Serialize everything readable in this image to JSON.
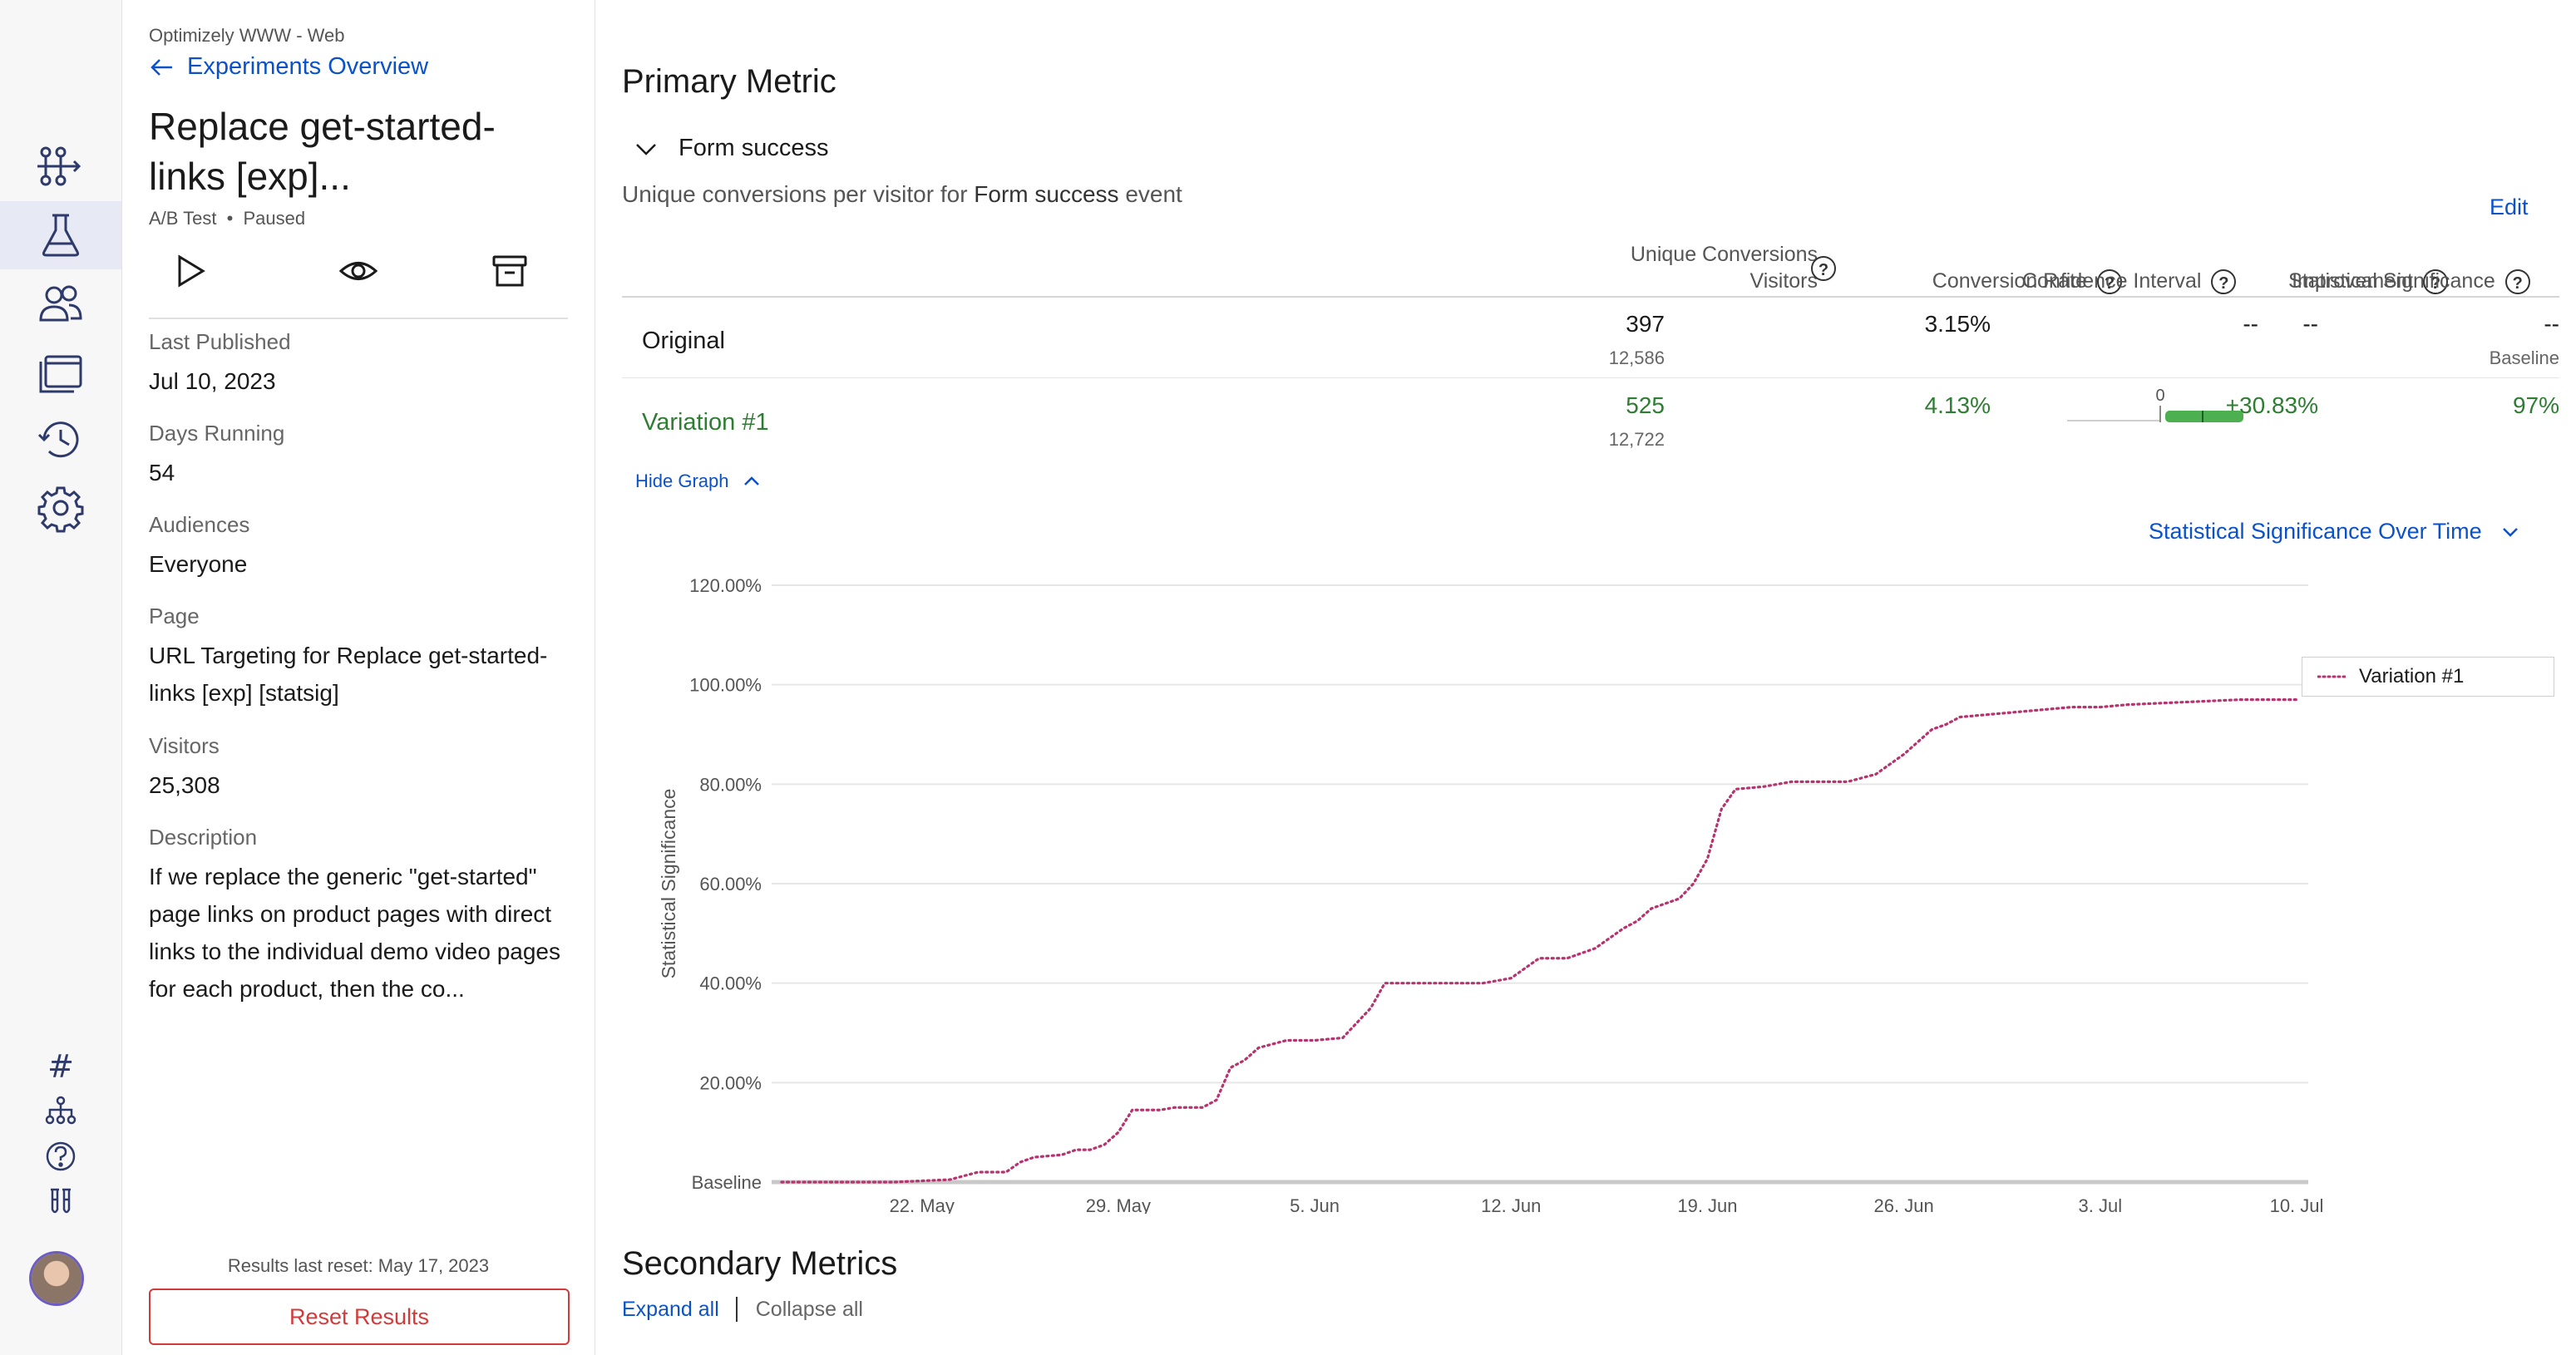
{
  "rail": {
    "items": [
      {
        "name": "flows-icon"
      },
      {
        "name": "flask-icon",
        "active": true
      },
      {
        "name": "users-icon"
      },
      {
        "name": "windows-icon"
      },
      {
        "name": "history-icon"
      },
      {
        "name": "gear-icon"
      }
    ],
    "bottom_items": [
      {
        "name": "hash-icon",
        "glyph": "#"
      },
      {
        "name": "hierarchy-icon"
      },
      {
        "name": "help-icon"
      },
      {
        "name": "test-tubes-icon"
      }
    ]
  },
  "sidebar": {
    "project": "Optimizely WWW - Web",
    "back_link": "Experiments Overview",
    "title": "Replace get-started- links [exp]...",
    "type": "A/B Test",
    "status": "Paused",
    "fields": [
      {
        "label": "Last Published",
        "value": "Jul 10, 2023"
      },
      {
        "label": "Days Running",
        "value": "54"
      },
      {
        "label": "Audiences",
        "value": "Everyone"
      },
      {
        "label": "Page",
        "value": "URL Targeting for Replace get-started- links [exp] [statsig]"
      },
      {
        "label": "Visitors",
        "value": "25,308"
      },
      {
        "label": "Description",
        "value": "If we replace the generic \"get-started\" page links on product pages with direct links to the individual demo video pages for each product, then the co..."
      }
    ],
    "reset_note": "Results last reset: May 17, 2023",
    "reset_button": "Reset Results"
  },
  "primary": {
    "heading": "Primary Metric",
    "metric_name": "Form success",
    "desc_prefix": "Unique conversions per visitor for",
    "desc_event": "Form success",
    "desc_suffix": "event",
    "edit": "Edit",
    "columns": {
      "conversions_line1": "Unique Conversions",
      "conversions_line2": "Visitors",
      "conversion_rate": "Conversion Rate",
      "improvement": "Improvement",
      "confidence_interval": "Confidence Interval",
      "significance": "Statistical Significance"
    },
    "rows": [
      {
        "name": "Original",
        "conversions": "397",
        "visitors": "12,586",
        "rate": "3.15%",
        "improvement": "--",
        "ci": "--",
        "significance": "--",
        "significance_note": "Baseline"
      },
      {
        "name": "Variation #1",
        "conversions": "525",
        "visitors": "12,722",
        "rate": "4.13%",
        "improvement": "+30.83%",
        "ci_zero": "0",
        "significance": "97%"
      }
    ],
    "hide_graph": "Hide Graph",
    "graph_select": "Statistical Significance Over Time"
  },
  "chart_data": {
    "type": "line",
    "title": "",
    "ylabel": "Statistical Significance",
    "xlabel": "",
    "ylim": [
      0,
      120
    ],
    "y_ticks": [
      "Baseline",
      "20.00%",
      "40.00%",
      "60.00%",
      "80.00%",
      "100.00%",
      "120.00%"
    ],
    "x_ticks": [
      "22. May",
      "29. May",
      "5. Jun",
      "12. Jun",
      "19. Jun",
      "26. Jun",
      "3. Jul",
      "10. Jul"
    ],
    "x_tick_days": [
      5,
      12,
      19,
      26,
      33,
      40,
      47,
      54
    ],
    "legend": "top-right",
    "series": [
      {
        "name": "Variation #1",
        "color": "#b5336e",
        "style": "dotted",
        "x_days": [
          0,
          4,
          6,
          7,
          8,
          8.5,
          9,
          10,
          10.5,
          11,
          11.5,
          12,
          12.5,
          13,
          13.5,
          14,
          15,
          15.5,
          16,
          16.5,
          17,
          18,
          19,
          20,
          21,
          21.5,
          22,
          23,
          24,
          25,
          26,
          27,
          27.5,
          28,
          29,
          30,
          30.5,
          31,
          32,
          32.5,
          33,
          33.5,
          34,
          35,
          35.5,
          36,
          37,
          38,
          39,
          40,
          41,
          41.5,
          42,
          43,
          44,
          45,
          46,
          47,
          48,
          50,
          52,
          54
        ],
        "y_values": [
          0,
          0,
          0.5,
          2,
          2,
          4,
          5,
          5.5,
          6.5,
          6.5,
          7.5,
          10,
          14.5,
          14.5,
          14.5,
          15,
          15,
          16.5,
          23,
          24.5,
          27,
          28.5,
          28.5,
          29,
          35,
          40,
          40,
          40,
          40,
          40,
          41,
          45,
          45,
          45,
          47,
          51,
          52.5,
          55,
          57,
          60,
          65,
          75,
          79,
          79.5,
          80,
          80.5,
          80.5,
          80.5,
          82,
          86,
          91,
          92,
          93.5,
          94,
          94.5,
          95,
          95.5,
          95.5,
          96,
          96.5,
          97,
          97
        ]
      }
    ]
  },
  "secondary": {
    "heading": "Secondary Metrics",
    "expand_all": "Expand all",
    "collapse_all": "Collapse all"
  },
  "colors": {
    "accent": "#0b52c9",
    "positive": "#2e7d32",
    "danger": "#d33a3a",
    "ci_bar": "#4caf50",
    "series": "#b5336e"
  }
}
